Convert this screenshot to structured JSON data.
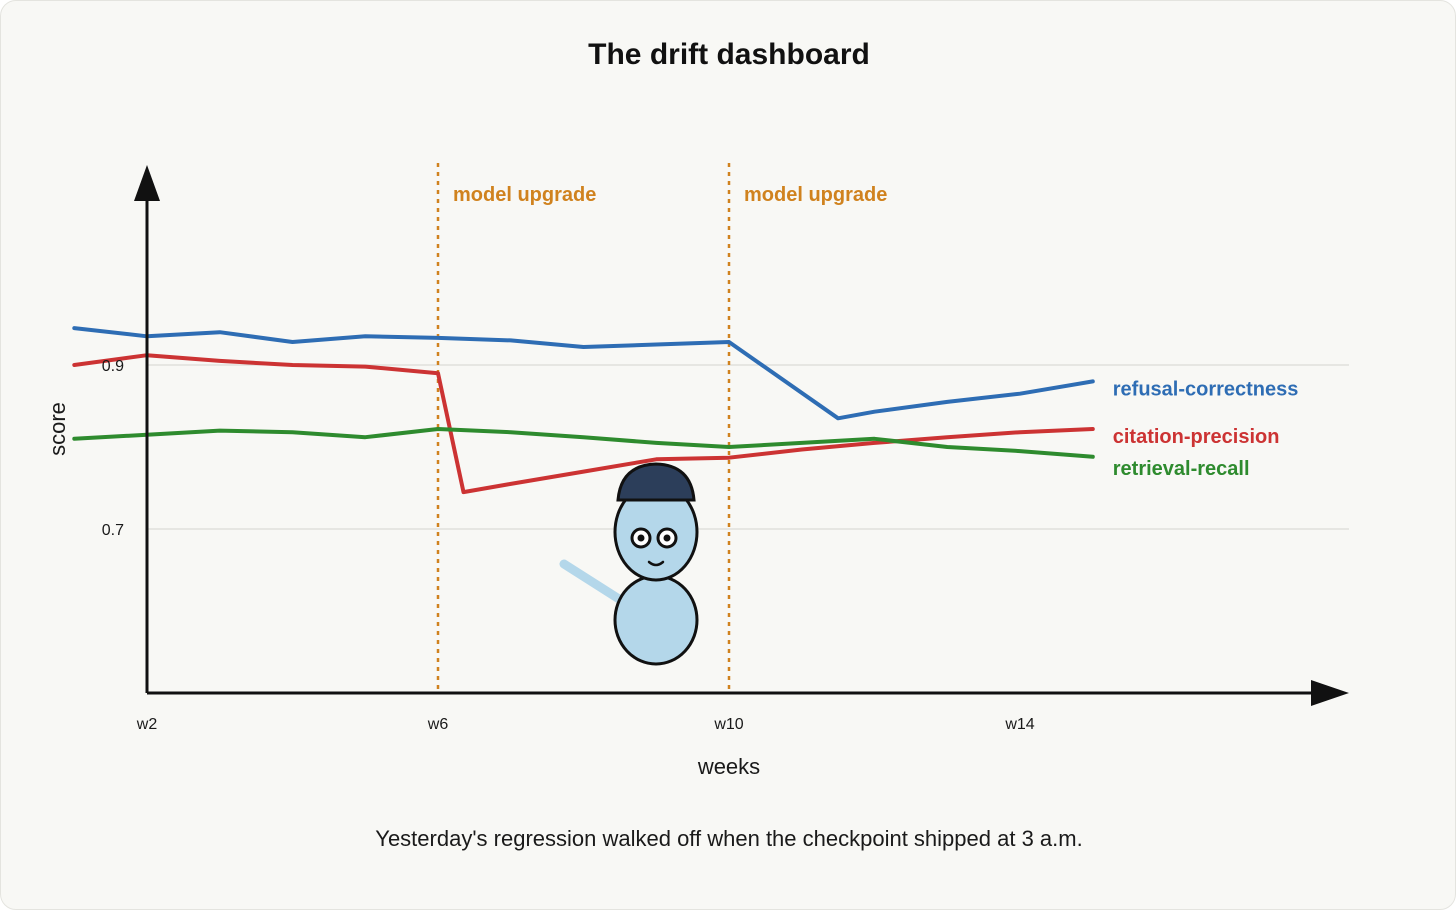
{
  "chart_data": {
    "type": "line",
    "title": "The drift dashboard",
    "xlabel": "weeks",
    "ylabel": "score",
    "caption": "Yesterday's regression walked off when the checkpoint shipped at 3 a.m.",
    "x": [
      1,
      2,
      3,
      4,
      5,
      6,
      7,
      8,
      9,
      10,
      11,
      12,
      13,
      14,
      15
    ],
    "x_ticks": [
      {
        "value": 2,
        "label": "w2"
      },
      {
        "value": 6,
        "label": "w6"
      },
      {
        "value": 10,
        "label": "w10"
      },
      {
        "value": 14,
        "label": "w14"
      }
    ],
    "y_ticks": [
      {
        "value": 0.9,
        "label": "0.9"
      },
      {
        "value": 0.7,
        "label": "0.7"
      }
    ],
    "xlim": [
      0,
      16
    ],
    "ylim": [
      0.5,
      1.1
    ],
    "grid": "horizontal at y ticks",
    "series": [
      {
        "name": "refusal-correctness",
        "color": "#2e6db4",
        "x": [
          1,
          2,
          3,
          4,
          5,
          6,
          7,
          8,
          9,
          10,
          11.5,
          12,
          13,
          14,
          15
        ],
        "values": [
          0.945,
          0.935,
          0.94,
          0.928,
          0.935,
          0.933,
          0.93,
          0.922,
          0.925,
          0.928,
          0.835,
          0.843,
          0.855,
          0.865,
          0.88
        ]
      },
      {
        "name": "citation-precision",
        "color": "#cc3333",
        "x": [
          1,
          2,
          3,
          4,
          5,
          6,
          6.35,
          7,
          8,
          9,
          10,
          11,
          12,
          13,
          14,
          15
        ],
        "values": [
          0.9,
          0.912,
          0.905,
          0.9,
          0.898,
          0.89,
          0.745,
          0.755,
          0.77,
          0.785,
          0.787,
          0.797,
          0.805,
          0.812,
          0.818,
          0.822
        ]
      },
      {
        "name": "retrieval-recall",
        "color": "#2e8b2e",
        "x": [
          1,
          2,
          3,
          4,
          5,
          6,
          7,
          8,
          9,
          10,
          11,
          12,
          13,
          14,
          15
        ],
        "values": [
          0.81,
          0.815,
          0.82,
          0.818,
          0.812,
          0.822,
          0.818,
          0.812,
          0.805,
          0.8,
          0.805,
          0.81,
          0.8,
          0.795,
          0.788
        ]
      }
    ],
    "annotations": [
      {
        "x": 6,
        "label": "model upgrade",
        "color": "#d0821e"
      },
      {
        "x": 10,
        "label": "model upgrade",
        "color": "#d0821e"
      }
    ],
    "illustration": {
      "name": "gnome-character",
      "body_color": "#b4d7ea",
      "hat_color": "#2c3e5a"
    }
  }
}
